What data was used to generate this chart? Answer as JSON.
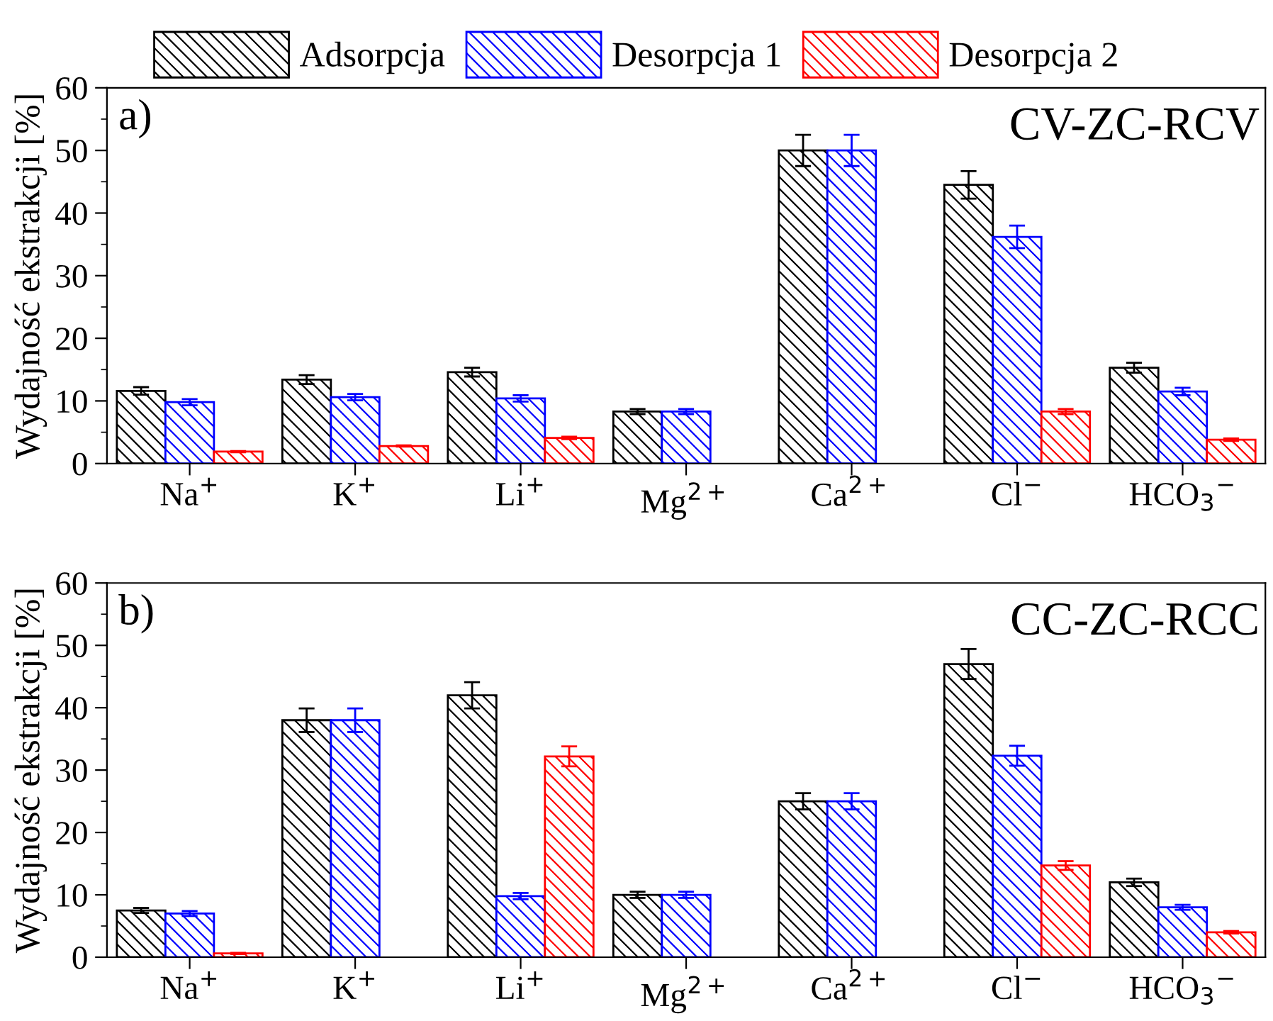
{
  "chart_data": [
    {
      "type": "bar",
      "ylabel": "Wydajność ekstrakcji [%]",
      "annotations": [
        "a)",
        "CV-ZC-RCV"
      ],
      "legend": "top",
      "categories": [
        "Na$^{+}$",
        "K$^{+}$",
        "Li$^{+}$",
        "Mg$^{2+}$",
        "Ca$^{2+}$",
        "Cl$^{−}$",
        "HCO$_{3}$$^{−}$"
      ],
      "ylim": [
        0,
        60
      ],
      "yticks": [
        0,
        10,
        20,
        30,
        40,
        50,
        60
      ],
      "series": [
        {
          "name": "Adsorpcja",
          "color": "#000000",
          "values": [
            11.6,
            13.4,
            14.6,
            8.3,
            50,
            44.5,
            15.3
          ],
          "errors": [
            0.6,
            0.7,
            0.7,
            0.4,
            2.5,
            2.2,
            0.8
          ]
        },
        {
          "name": "Desorpcja 1",
          "color": "#0000ff",
          "values": [
            9.8,
            10.6,
            10.4,
            8.3,
            50,
            36.2,
            11.5
          ],
          "errors": [
            0.5,
            0.5,
            0.5,
            0.4,
            2.5,
            1.8,
            0.6
          ]
        },
        {
          "name": "Desorpcja 2",
          "color": "#ff0000",
          "values": [
            1.9,
            2.8,
            4.1,
            null,
            null,
            8.3,
            3.8
          ],
          "errors": [
            0.1,
            0.1,
            0.2,
            null,
            null,
            0.4,
            0.2
          ]
        }
      ]
    },
    {
      "type": "bar",
      "ylabel": "Wydajność ekstrakcji [%]",
      "annotations": [
        "b)",
        "CC-ZC-RCC"
      ],
      "categories": [
        "Na$^{+}$",
        "K$^{+}$",
        "Li$^{+}$",
        "Mg$^{2+}$",
        "Ca$^{2+}$",
        "Cl$^{−}$",
        "HCO$_{3}$$^{−}$"
      ],
      "ylim": [
        0,
        60
      ],
      "yticks": [
        0,
        10,
        20,
        30,
        40,
        50,
        60
      ],
      "series": [
        {
          "color": "#000000",
          "values": [
            7.5,
            38,
            42,
            10,
            25,
            47,
            12
          ],
          "errors": [
            0.4,
            1.9,
            2.1,
            0.5,
            1.3,
            2.4,
            0.6
          ]
        },
        {
          "color": "#0000ff",
          "values": [
            7,
            38,
            9.8,
            10,
            25,
            32.3,
            8
          ],
          "errors": [
            0.4,
            1.9,
            0.5,
            0.5,
            1.3,
            1.6,
            0.4
          ]
        },
        {
          "color": "#ff0000",
          "values": [
            0.6,
            null,
            32.2,
            null,
            null,
            14.7,
            4
          ],
          "errors": [
            0.1,
            null,
            1.6,
            null,
            null,
            0.7,
            0.2
          ]
        }
      ]
    }
  ]
}
